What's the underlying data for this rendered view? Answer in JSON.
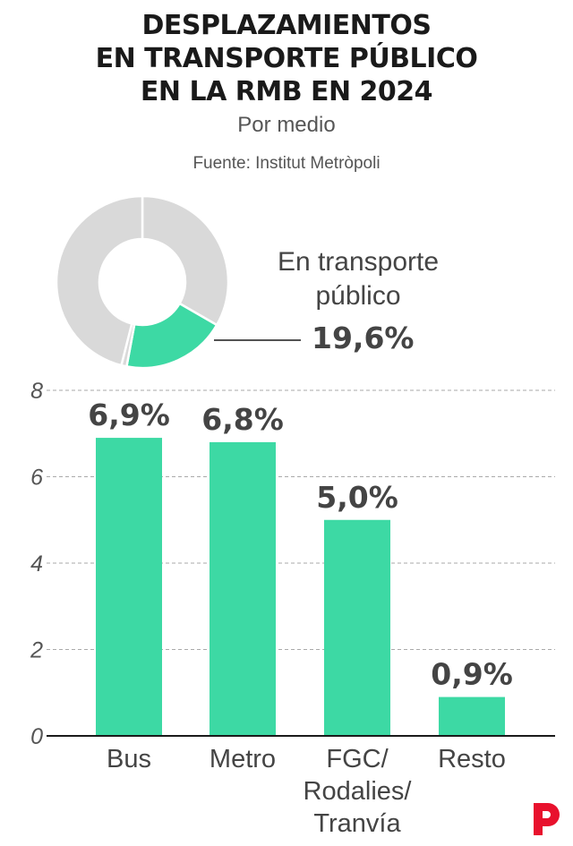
{
  "title_lines": [
    "DESPLAZAMIENTOS",
    "EN TRANSPORTE PÚBLICO",
    "EN LA RMB EN 2024"
  ],
  "subtitle": "Por medio",
  "source": "Fuente: Institut Metròpoli",
  "donut": {
    "label": "En transporte público",
    "value_label": "19,6%",
    "value": 19.6,
    "highlight_color": "#3dd9a4",
    "rest_color": "#d9d9d9"
  },
  "logo_name": "publisher-logo",
  "logo_color": "#e8112d",
  "chart_data": {
    "type": "bar",
    "categories": [
      "Bus",
      "Metro",
      "FGC/\nRodalies/\nTranvía",
      "Resto"
    ],
    "values": [
      6.9,
      6.8,
      5.0,
      0.9
    ],
    "data_labels": [
      "6,9%",
      "6,8%",
      "5,0%",
      "0,9%"
    ],
    "ylim": [
      0,
      8
    ],
    "yticks": [
      0,
      2,
      4,
      6,
      8
    ],
    "grid": true,
    "bar_color": "#3dd9a4"
  }
}
